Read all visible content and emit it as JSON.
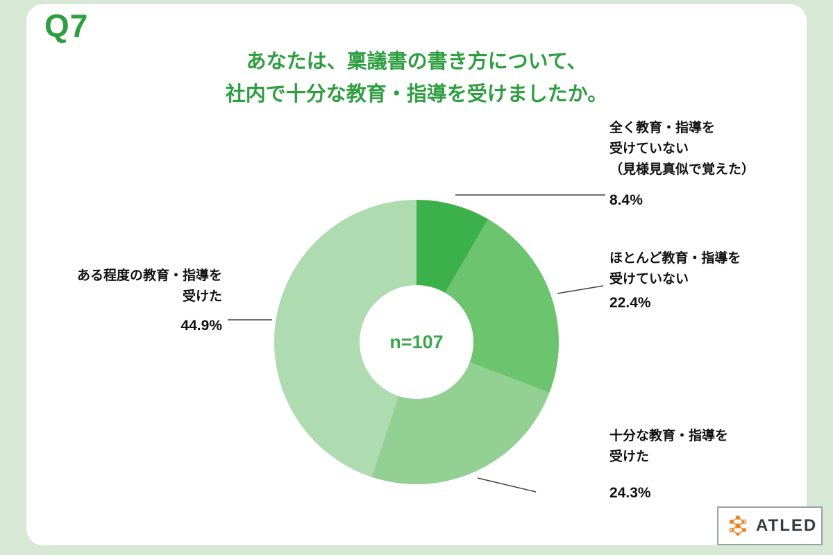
{
  "page": {
    "question_number": "Q7",
    "title_line1": "あなたは、稟議書の書き方について、",
    "title_line2": "社内で十分な教育・指導を受けましたか。",
    "center_label": "n=107",
    "logo_text": "ATLED"
  },
  "colors": {
    "background": "#d7e9d5",
    "card": "#ffffff",
    "title_green": "#2f9e41",
    "center_green": "#3aa74e",
    "logo_orange": "#ef8018"
  },
  "chart_data": {
    "type": "pie",
    "title": "あなたは、稟議書の書き方について、社内で十分な教育・指導を受けましたか。",
    "n": 107,
    "start_angle_deg": 0,
    "direction": "clockwise",
    "donut_hole": true,
    "segments": [
      {
        "label": "全く教育・指導を受けていない（見様見真似で覚えた）",
        "value": 8.4,
        "color": "#3cb04a"
      },
      {
        "label": "ほとんど教育・指導を受けていない",
        "value": 22.4,
        "color": "#6cc46e"
      },
      {
        "label": "十分な教育・指導を受けた",
        "value": 24.3,
        "color": "#92d094"
      },
      {
        "label": "ある程度の教育・指導を受けた",
        "value": 44.9,
        "color": "#aedbaf"
      }
    ]
  },
  "labels": {
    "seg1": {
      "line1": "全く教育・指導を",
      "line2": "受けていない",
      "line3": "（見様見真似で覚えた）",
      "pct": "8.4%"
    },
    "seg2": {
      "line1": "ほとんど教育・指導を",
      "line2": "受けていない",
      "pct": "22.4%"
    },
    "seg3": {
      "line1": "十分な教育・指導を",
      "line2": "受けた",
      "pct": "24.3%"
    },
    "seg4": {
      "line1": "ある程度の教育・指導を",
      "line2": "受けた",
      "pct": "44.9%"
    }
  }
}
